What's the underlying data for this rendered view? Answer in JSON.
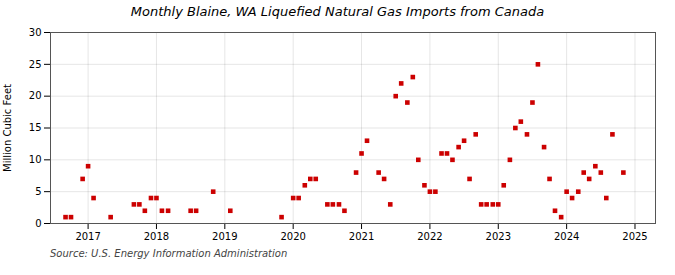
{
  "chart_data": {
    "type": "scatter",
    "title": "Monthly Blaine, WA Liquefied Natural Gas Imports from Canada",
    "ylabel": "Million Cubic Feet",
    "annotations": [
      "Source: U.S. Energy Information Administration"
    ],
    "color": "#cc0000",
    "marker": "square",
    "grid": true,
    "xlim": [
      2016.45,
      2025.3
    ],
    "xticks": [
      2017,
      2018,
      2019,
      2020,
      2021,
      2022,
      2023,
      2024,
      2025
    ],
    "ylim": [
      0,
      30
    ],
    "yticks": [
      0,
      5,
      10,
      15,
      20,
      25,
      30
    ],
    "x": [
      2016.67,
      2016.75,
      2016.92,
      2017.0,
      2017.08,
      2017.33,
      2017.67,
      2017.75,
      2017.83,
      2017.92,
      2018.0,
      2018.08,
      2018.17,
      2018.5,
      2018.58,
      2018.83,
      2019.08,
      2019.83,
      2020.0,
      2020.08,
      2020.17,
      2020.25,
      2020.33,
      2020.5,
      2020.58,
      2020.67,
      2020.75,
      2020.92,
      2021.0,
      2021.08,
      2021.25,
      2021.33,
      2021.42,
      2021.5,
      2021.58,
      2021.67,
      2021.75,
      2021.83,
      2021.92,
      2022.0,
      2022.08,
      2022.17,
      2022.25,
      2022.33,
      2022.42,
      2022.5,
      2022.58,
      2022.67,
      2022.75,
      2022.83,
      2022.92,
      2023.0,
      2023.08,
      2023.17,
      2023.25,
      2023.33,
      2023.42,
      2023.5,
      2023.58,
      2023.67,
      2023.75,
      2023.83,
      2023.92,
      2024.0,
      2024.08,
      2024.17,
      2024.25,
      2024.33,
      2024.42,
      2024.5,
      2024.58,
      2024.67,
      2024.83
    ],
    "values": [
      1,
      1,
      7,
      9,
      4,
      1,
      3,
      3,
      2,
      4,
      4,
      2,
      2,
      2,
      2,
      5,
      2,
      1,
      4,
      4,
      6,
      7,
      7,
      3,
      3,
      3,
      2,
      8,
      11,
      13,
      8,
      7,
      3,
      20,
      22,
      19,
      23,
      10,
      6,
      5,
      5,
      11,
      11,
      10,
      12,
      13,
      7,
      14,
      3,
      3,
      3,
      3,
      6,
      10,
      15,
      16,
      14,
      19,
      25,
      12,
      7,
      2,
      1,
      5,
      4,
      5,
      8,
      7,
      9,
      8,
      4,
      14,
      8
    ]
  }
}
